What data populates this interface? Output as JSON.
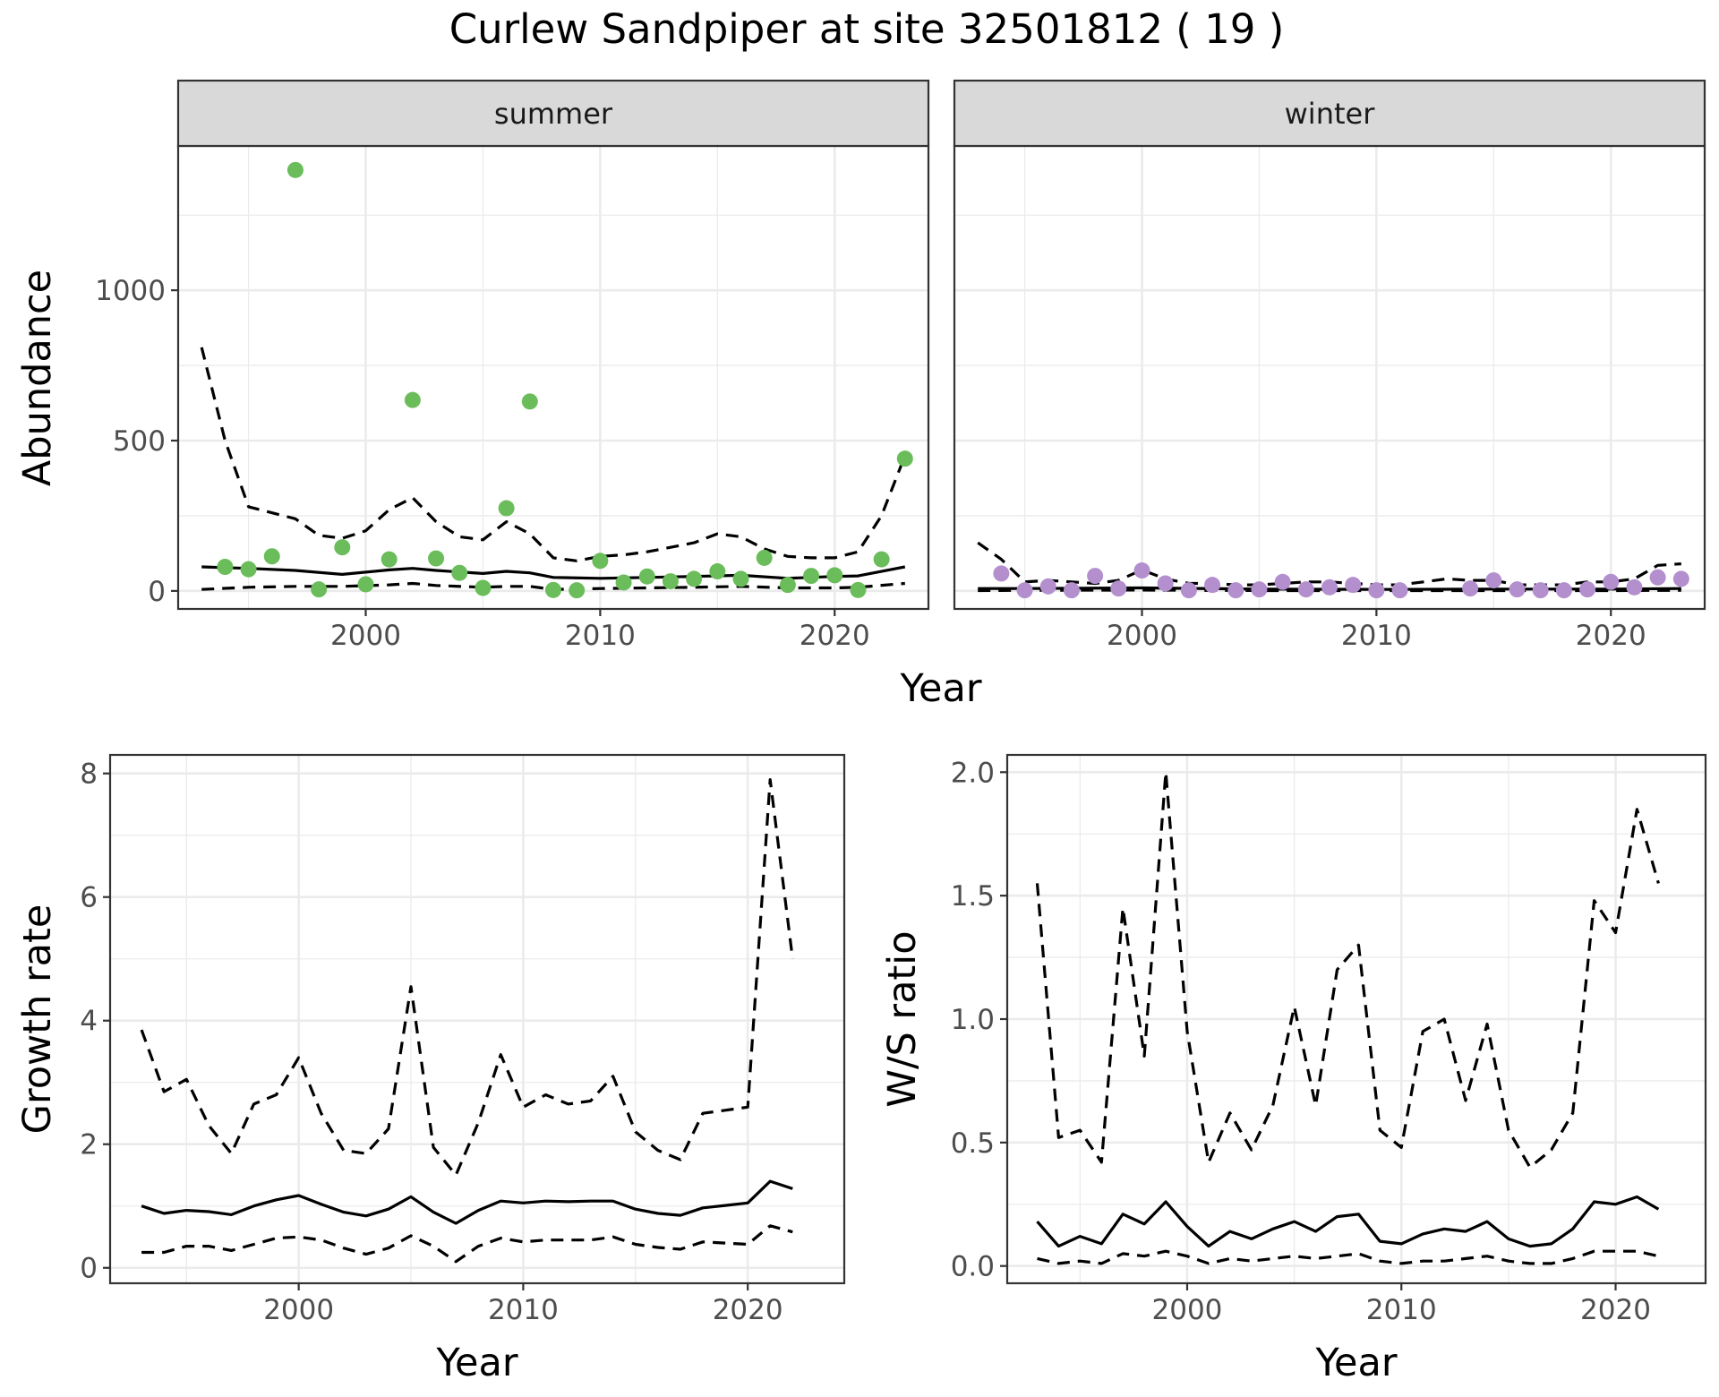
{
  "title": "Curlew Sandpiper at site 32501812 ( 19 )",
  "chart_data": [
    {
      "id": "abundance",
      "type": "scatter",
      "ylabel": "Abundance",
      "xlabel": "Year",
      "xlim": [
        1992,
        2024
      ],
      "ylim": [
        -60,
        1480
      ],
      "x_ticks": [
        2000,
        2010,
        2020
      ],
      "y_ticks": [
        0,
        500,
        1000
      ],
      "grid": true,
      "facets": [
        {
          "label": "summer",
          "point_color": "#6abd5a",
          "points": {
            "x": [
              1994,
              1995,
              1996,
              1997,
              1998,
              1999,
              2000,
              2001,
              2002,
              2003,
              2004,
              2005,
              2006,
              2007,
              2008,
              2009,
              2010,
              2011,
              2012,
              2013,
              2014,
              2015,
              2016,
              2017,
              2018,
              2019,
              2020,
              2021,
              2022,
              2023
            ],
            "y": [
              80,
              72,
              115,
              1400,
              5,
              145,
              22,
              105,
              635,
              108,
              60,
              10,
              275,
              630,
              3,
              2,
              100,
              28,
              48,
              32,
              40,
              65,
              40,
              110,
              20,
              50,
              52,
              3,
              105,
              440
            ]
          },
          "lines": [
            {
              "style": "solid",
              "x": [
                1993,
                1995,
                1997,
                1999,
                2001,
                2002,
                2003,
                2005,
                2006,
                2007,
                2008,
                2010,
                2012,
                2014,
                2016,
                2018,
                2020,
                2021,
                2023
              ],
              "y": [
                80,
                75,
                68,
                55,
                70,
                75,
                68,
                58,
                65,
                60,
                45,
                42,
                45,
                48,
                52,
                42,
                48,
                50,
                80
              ]
            },
            {
              "style": "dashed",
              "x": [
                1993,
                1994,
                1995,
                1997,
                1998,
                1999,
                2000,
                2001,
                2002,
                2003,
                2004,
                2005,
                2006,
                2007,
                2008,
                2009,
                2010,
                2011,
                2012,
                2013,
                2014,
                2015,
                2016,
                2017,
                2018,
                2019,
                2020,
                2021,
                2022,
                2023
              ],
              "y": [
                810,
                500,
                280,
                240,
                185,
                175,
                200,
                270,
                310,
                230,
                180,
                170,
                230,
                190,
                110,
                100,
                115,
                120,
                130,
                145,
                160,
                190,
                180,
                140,
                115,
                110,
                110,
                130,
                250,
                450
              ]
            },
            {
              "style": "dashed",
              "x": [
                1993,
                1995,
                1997,
                1999,
                2001,
                2002,
                2003,
                2005,
                2006,
                2007,
                2008,
                2010,
                2012,
                2014,
                2016,
                2018,
                2020,
                2021,
                2023
              ],
              "y": [
                5,
                12,
                15,
                15,
                20,
                25,
                18,
                12,
                15,
                15,
                5,
                8,
                10,
                12,
                15,
                10,
                10,
                12,
                25
              ]
            }
          ]
        },
        {
          "label": "winter",
          "point_color": "#b38fce",
          "points": {
            "x": [
              1994,
              1995,
              1996,
              1997,
              1998,
              1999,
              2000,
              2001,
              2002,
              2003,
              2004,
              2005,
              2006,
              2007,
              2008,
              2009,
              2010,
              2011,
              2014,
              2015,
              2016,
              2017,
              2018,
              2019,
              2020,
              2021,
              2022,
              2023
            ],
            "y": [
              58,
              2,
              15,
              2,
              50,
              8,
              68,
              25,
              2,
              20,
              2,
              5,
              30,
              5,
              12,
              20,
              2,
              2,
              8,
              35,
              5,
              2,
              2,
              5,
              30,
              12,
              45,
              40
            ]
          },
          "lines": [
            {
              "style": "solid",
              "x": [
                1993,
                1995,
                2000,
                2005,
                2010,
                2015,
                2020,
                2023
              ],
              "y": [
                8,
                8,
                10,
                6,
                5,
                6,
                6,
                8
              ]
            },
            {
              "style": "dashed",
              "x": [
                1993,
                1994,
                1995,
                1996,
                1997,
                1998,
                1999,
                2000,
                2001,
                2002,
                2003,
                2004,
                2005,
                2006,
                2007,
                2008,
                2009,
                2010,
                2011,
                2012,
                2013,
                2014,
                2015,
                2016,
                2017,
                2018,
                2019,
                2020,
                2021,
                2022,
                2023
              ],
              "y": [
                160,
                105,
                30,
                35,
                30,
                25,
                35,
                70,
                40,
                25,
                25,
                20,
                20,
                25,
                30,
                30,
                25,
                20,
                20,
                30,
                40,
                35,
                35,
                20,
                20,
                20,
                30,
                30,
                40,
                85,
                90
              ]
            },
            {
              "style": "dashed",
              "x": [
                1993,
                1995,
                2000,
                2005,
                2010,
                2015,
                2020,
                2023
              ],
              "y": [
                1,
                2,
                3,
                1,
                1,
                1,
                1,
                2
              ]
            }
          ]
        }
      ]
    },
    {
      "id": "growth",
      "type": "line",
      "ylabel": "Growth rate",
      "xlabel": "Year",
      "xlim": [
        1991.6,
        2024.3
      ],
      "ylim": [
        -0.25,
        8.3
      ],
      "x_ticks": [
        2000,
        2010,
        2020
      ],
      "y_ticks": [
        0,
        2,
        4,
        6,
        8
      ],
      "grid": true,
      "series": [
        {
          "style": "solid",
          "x": [
            1993,
            1994,
            1995,
            1996,
            1997,
            1998,
            1999,
            2000,
            2001,
            2002,
            2003,
            2004,
            2005,
            2006,
            2007,
            2008,
            2009,
            2010,
            2011,
            2012,
            2013,
            2014,
            2015,
            2016,
            2017,
            2018,
            2019,
            2020,
            2021,
            2022
          ],
          "y": [
            1.0,
            0.88,
            0.93,
            0.91,
            0.86,
            1.0,
            1.1,
            1.17,
            1.03,
            0.9,
            0.84,
            0.95,
            1.15,
            0.9,
            0.72,
            0.93,
            1.08,
            1.05,
            1.08,
            1.07,
            1.08,
            1.08,
            0.95,
            0.88,
            0.85,
            0.97,
            1.01,
            1.05,
            1.4,
            1.28
          ]
        },
        {
          "style": "dashed",
          "x": [
            1993,
            1994,
            1995,
            1996,
            1997,
            1998,
            1999,
            2000,
            2001,
            2002,
            2003,
            2004,
            2005,
            2006,
            2007,
            2008,
            2009,
            2010,
            2011,
            2012,
            2013,
            2014,
            2015,
            2016,
            2017,
            2018,
            2019,
            2020,
            2021,
            2022
          ],
          "y": [
            3.85,
            2.85,
            3.05,
            2.3,
            1.85,
            2.65,
            2.8,
            3.4,
            2.5,
            1.9,
            1.85,
            2.25,
            4.55,
            1.95,
            1.5,
            2.35,
            3.45,
            2.6,
            2.8,
            2.65,
            2.7,
            3.1,
            2.2,
            1.9,
            1.75,
            2.5,
            2.55,
            2.6,
            7.9,
            5.0
          ]
        },
        {
          "style": "dashed",
          "x": [
            1993,
            1994,
            1995,
            1996,
            1997,
            1998,
            1999,
            2000,
            2001,
            2002,
            2003,
            2004,
            2005,
            2006,
            2007,
            2008,
            2009,
            2010,
            2011,
            2012,
            2013,
            2014,
            2015,
            2016,
            2017,
            2018,
            2019,
            2020,
            2021,
            2022
          ],
          "y": [
            0.25,
            0.25,
            0.35,
            0.35,
            0.28,
            0.38,
            0.48,
            0.5,
            0.45,
            0.32,
            0.22,
            0.32,
            0.52,
            0.35,
            0.1,
            0.35,
            0.48,
            0.42,
            0.45,
            0.45,
            0.45,
            0.5,
            0.38,
            0.33,
            0.3,
            0.42,
            0.4,
            0.38,
            0.68,
            0.58
          ]
        }
      ]
    },
    {
      "id": "ws_ratio",
      "type": "line",
      "ylabel": "W/S ratio",
      "xlabel": "Year",
      "xlim": [
        1991.6,
        2024.2
      ],
      "ylim": [
        -0.07,
        2.07
      ],
      "x_ticks": [
        2000,
        2010,
        2020
      ],
      "y_ticks": [
        0.0,
        0.5,
        1.0,
        1.5,
        2.0
      ],
      "y_tick_labels": [
        "0.0",
        "0.5",
        "1.0",
        "1.5",
        "2.0"
      ],
      "grid": true,
      "series": [
        {
          "style": "solid",
          "x": [
            1993,
            1994,
            1995,
            1996,
            1997,
            1998,
            1999,
            2000,
            2001,
            2002,
            2003,
            2004,
            2005,
            2006,
            2007,
            2008,
            2009,
            2010,
            2011,
            2012,
            2013,
            2014,
            2015,
            2016,
            2017,
            2018,
            2019,
            2020,
            2021,
            2022
          ],
          "y": [
            0.18,
            0.08,
            0.12,
            0.09,
            0.21,
            0.17,
            0.26,
            0.16,
            0.08,
            0.14,
            0.11,
            0.15,
            0.18,
            0.14,
            0.2,
            0.21,
            0.1,
            0.09,
            0.13,
            0.15,
            0.14,
            0.18,
            0.11,
            0.08,
            0.09,
            0.15,
            0.26,
            0.25,
            0.28,
            0.23
          ]
        },
        {
          "style": "dashed",
          "x": [
            1993,
            1994,
            1995,
            1996,
            1997,
            1998,
            1999,
            2000,
            2001,
            2002,
            2003,
            2004,
            2005,
            2006,
            2007,
            2008,
            2009,
            2010,
            2011,
            2012,
            2013,
            2014,
            2015,
            2016,
            2017,
            2018,
            2019,
            2020,
            2021,
            2022
          ],
          "y": [
            1.55,
            0.52,
            0.55,
            0.42,
            1.45,
            0.85,
            2.0,
            0.95,
            0.42,
            0.62,
            0.47,
            0.65,
            1.05,
            0.65,
            1.2,
            1.3,
            0.55,
            0.48,
            0.95,
            1.0,
            0.67,
            0.98,
            0.55,
            0.4,
            0.47,
            0.62,
            1.48,
            1.35,
            1.85,
            1.55
          ]
        },
        {
          "style": "dashed",
          "x": [
            1993,
            1994,
            1995,
            1996,
            1997,
            1998,
            1999,
            2000,
            2001,
            2002,
            2003,
            2004,
            2005,
            2006,
            2007,
            2008,
            2009,
            2010,
            2011,
            2012,
            2013,
            2014,
            2015,
            2016,
            2017,
            2018,
            2019,
            2020,
            2021,
            2022
          ],
          "y": [
            0.03,
            0.01,
            0.02,
            0.01,
            0.05,
            0.04,
            0.06,
            0.04,
            0.01,
            0.03,
            0.02,
            0.03,
            0.04,
            0.03,
            0.04,
            0.05,
            0.02,
            0.01,
            0.02,
            0.02,
            0.03,
            0.04,
            0.02,
            0.01,
            0.01,
            0.03,
            0.06,
            0.06,
            0.06,
            0.04
          ]
        }
      ]
    }
  ]
}
